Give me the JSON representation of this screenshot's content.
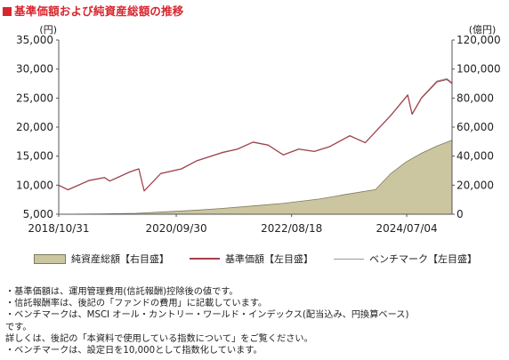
{
  "title": "基準価額および純資産総額の推移",
  "colors": {
    "title": "#d8262e",
    "nav_line": "#a3404a",
    "bench_line": "#999999",
    "area_fill": "#cbc6a0",
    "area_edge": "#7e7a5c"
  },
  "chart_data": {
    "type": "line",
    "title": "基準価額および純資産総額の推移",
    "y_left": {
      "unit": "(円)",
      "min": 5000,
      "max": 35000,
      "ticks": [
        "5,000",
        "10,000",
        "15,000",
        "20,000",
        "25,000",
        "30,000",
        "35,000"
      ]
    },
    "y_right": {
      "unit": "(億円)",
      "min": 0,
      "max": 120000,
      "ticks": [
        "0",
        "20,000",
        "40,000",
        "60,000",
        "80,000",
        "100,000",
        "120,000"
      ]
    },
    "x_labels": [
      "2018/10/31",
      "2020/09/30",
      "2022/08/18",
      "2024/07/04"
    ],
    "x_range": [
      "2018/10/31",
      "2025/03/31"
    ],
    "grid": false,
    "legend_position": "bottom",
    "series": [
      {
        "name": "純資産総額【右目盛】",
        "type": "area",
        "axis": "right",
        "x": [
          "2018/10/31",
          "2019/06/30",
          "2020/01/31",
          "2020/06/30",
          "2021/01/31",
          "2021/06/30",
          "2022/01/31",
          "2022/06/30",
          "2023/01/31",
          "2023/06/30",
          "2023/12/31",
          "2024/03/31",
          "2024/06/30",
          "2024/09/30",
          "2024/12/31",
          "2025/03/31"
        ],
        "values": [
          0,
          200,
          600,
          1500,
          2800,
          4000,
          6000,
          7500,
          10500,
          13500,
          17000,
          28000,
          36000,
          42000,
          47000,
          51000
        ]
      },
      {
        "name": "基準価額【左目盛】",
        "type": "line",
        "axis": "left",
        "x": [
          "2018/10/31",
          "2018/12/25",
          "2019/04/30",
          "2019/07/31",
          "2019/08/31",
          "2019/12/31",
          "2020/02/20",
          "2020/03/23",
          "2020/06/30",
          "2020/10/31",
          "2021/01/31",
          "2021/06/30",
          "2021/09/30",
          "2021/12/31",
          "2022/03/31",
          "2022/06/30",
          "2022/09/30",
          "2022/12/31",
          "2023/03/31",
          "2023/07/31",
          "2023/10/31",
          "2023/12/31",
          "2024/03/31",
          "2024/07/10",
          "2024/08/05",
          "2024/09/30",
          "2024/12/31",
          "2025/02/28",
          "2025/03/31"
        ],
        "values": [
          10000,
          9200,
          10800,
          11300,
          10700,
          12300,
          12800,
          9000,
          12000,
          12800,
          14200,
          15600,
          16200,
          17400,
          16900,
          15200,
          16200,
          15800,
          16600,
          18500,
          17300,
          19200,
          22000,
          25500,
          22200,
          25000,
          27800,
          28200,
          27500
        ]
      },
      {
        "name": "ベンチマーク【左目盛】",
        "type": "line",
        "axis": "left",
        "x": [
          "2018/10/31",
          "2018/12/25",
          "2019/04/30",
          "2019/07/31",
          "2019/08/31",
          "2019/12/31",
          "2020/02/20",
          "2020/03/23",
          "2020/06/30",
          "2020/10/31",
          "2021/01/31",
          "2021/06/30",
          "2021/09/30",
          "2021/12/31",
          "2022/03/31",
          "2022/06/30",
          "2022/09/30",
          "2022/12/31",
          "2023/03/31",
          "2023/07/31",
          "2023/10/31",
          "2023/12/31",
          "2024/03/31",
          "2024/07/10",
          "2024/08/05",
          "2024/09/30",
          "2024/12/31",
          "2025/02/28",
          "2025/03/31"
        ],
        "values": [
          10000,
          9250,
          10850,
          11350,
          10750,
          12350,
          12850,
          9050,
          12050,
          12850,
          14250,
          15650,
          16250,
          17450,
          16950,
          15250,
          16250,
          15850,
          16650,
          18550,
          17350,
          19250,
          22050,
          25600,
          22300,
          25100,
          27950,
          28350,
          27650
        ]
      }
    ]
  },
  "legend": [
    {
      "label": "純資産総額【右目盛】"
    },
    {
      "label": "基準価額【左目盛】"
    },
    {
      "label": "ベンチマーク【左目盛】"
    }
  ],
  "notes": [
    "・基準価額は、運用管理費用(信託報酬)控除後の値です。",
    "・信託報酬率は、後記の「ファンドの費用」に記載しています。",
    "・ベンチマークは、MSCI オール・カントリー・ワールド・インデックス(配当込み、円換算ベース)",
    "  です。",
    "  詳しくは、後記の「本資料で使用している指数について」をご覧ください。",
    "・ベンチマークは、設定日を10,000として指数化しています。"
  ]
}
